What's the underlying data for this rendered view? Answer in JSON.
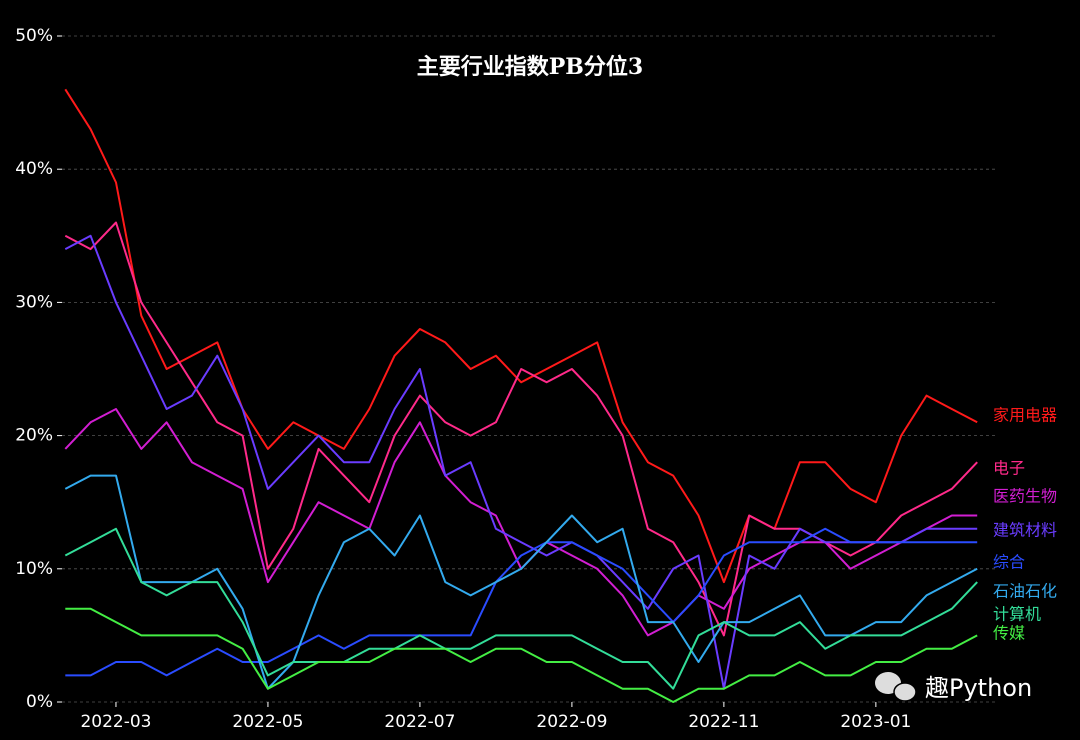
{
  "chart_data": {
    "type": "line",
    "title": "主要行业指数PB分位3",
    "watermark": "趣Python",
    "categories": [
      null,
      null,
      "2022-03",
      null,
      null,
      null,
      null,
      null,
      "2022-05",
      null,
      null,
      null,
      null,
      null,
      "2022-07",
      null,
      null,
      null,
      null,
      null,
      "2022-09",
      null,
      null,
      null,
      null,
      null,
      "2022-11",
      null,
      null,
      null,
      null,
      null,
      "2023-01",
      null,
      null,
      null,
      null
    ],
    "ylim": [
      0,
      50
    ],
    "yticks": [
      {
        "value": 0,
        "label": "0%"
      },
      {
        "value": 10,
        "label": "10%"
      },
      {
        "value": 20,
        "label": "20%"
      },
      {
        "value": 30,
        "label": "30%"
      },
      {
        "value": 40,
        "label": "40%"
      },
      {
        "value": 50,
        "label": "50%"
      }
    ],
    "grid": true,
    "series": [
      {
        "name": "家用电器",
        "color": "#ff1a1a",
        "values": [
          46,
          43,
          39,
          29,
          25,
          26,
          27,
          22,
          19,
          21,
          20,
          19,
          22,
          26,
          28,
          27,
          25,
          26,
          24,
          25,
          26,
          27,
          21,
          18,
          17,
          14,
          9,
          14,
          13,
          18,
          18,
          16,
          15,
          20,
          23,
          22,
          21
        ]
      },
      {
        "name": "电子",
        "color": "#ff2a8a",
        "values": [
          35,
          34,
          36,
          30,
          27,
          24,
          21,
          20,
          10,
          13,
          19,
          17,
          15,
          20,
          23,
          21,
          20,
          21,
          25,
          24,
          25,
          23,
          20,
          13,
          12,
          9,
          5,
          14,
          13,
          13,
          12,
          11,
          12,
          14,
          15,
          16,
          18
        ]
      },
      {
        "name": "医药生物",
        "color": "#d21ed2",
        "values": [
          19,
          21,
          22,
          19,
          21,
          18,
          17,
          16,
          9,
          12,
          15,
          14,
          13,
          18,
          21,
          17,
          15,
          14,
          10,
          12,
          11,
          10,
          8,
          5,
          6,
          8,
          7,
          10,
          11,
          12,
          12,
          10,
          11,
          12,
          13,
          14,
          14
        ]
      },
      {
        "name": "建筑材料",
        "color": "#6a3cff",
        "values": [
          34,
          35,
          30,
          26,
          22,
          23,
          26,
          22,
          16,
          18,
          20,
          18,
          18,
          22,
          25,
          17,
          18,
          13,
          12,
          11,
          12,
          11,
          9,
          7,
          10,
          11,
          1,
          11,
          10,
          13,
          12,
          12,
          12,
          12,
          13,
          13,
          13
        ]
      },
      {
        "name": "综合",
        "color": "#2a4cff",
        "values": [
          2,
          2,
          3,
          3,
          2,
          3,
          4,
          3,
          3,
          4,
          5,
          4,
          5,
          5,
          5,
          5,
          5,
          9,
          11,
          12,
          12,
          11,
          10,
          8,
          6,
          8,
          11,
          12,
          12,
          12,
          13,
          12,
          12,
          12,
          12,
          12,
          12
        ]
      },
      {
        "name": "石油石化",
        "color": "#33aaee",
        "values": [
          16,
          17,
          17,
          9,
          9,
          9,
          10,
          7,
          1,
          3,
          8,
          12,
          13,
          11,
          14,
          9,
          8,
          9,
          10,
          12,
          14,
          12,
          13,
          6,
          6,
          3,
          6,
          6,
          7,
          8,
          5,
          5,
          6,
          6,
          8,
          9,
          10
        ]
      },
      {
        "name": "计算机",
        "color": "#33dd99",
        "values": [
          11,
          12,
          13,
          9,
          8,
          9,
          9,
          6,
          2,
          3,
          3,
          3,
          4,
          4,
          5,
          4,
          4,
          5,
          5,
          5,
          5,
          4,
          3,
          3,
          1,
          5,
          6,
          5,
          5,
          6,
          4,
          5,
          5,
          5,
          6,
          7,
          9
        ]
      },
      {
        "name": "传媒",
        "color": "#44ee44",
        "values": [
          7,
          7,
          6,
          5,
          5,
          5,
          5,
          4,
          1,
          2,
          3,
          3,
          3,
          4,
          4,
          4,
          3,
          4,
          4,
          3,
          3,
          2,
          1,
          1,
          0,
          1,
          1,
          2,
          2,
          3,
          2,
          2,
          3,
          3,
          4,
          4,
          5
        ]
      }
    ]
  }
}
